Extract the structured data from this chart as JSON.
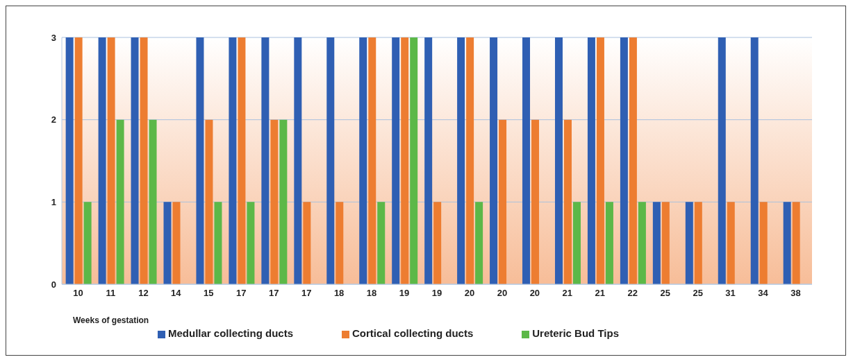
{
  "chart_data": {
    "type": "bar",
    "xlabel": "Weeks of gestation",
    "categories": [
      "10",
      "11",
      "12",
      "14",
      "15",
      "17",
      "17",
      "17",
      "18",
      "18",
      "19",
      "19",
      "20",
      "20",
      "20",
      "21",
      "21",
      "22",
      "25",
      "25",
      "31",
      "34",
      "38"
    ],
    "series": [
      {
        "name": "Medullar  collecting ducts",
        "color": "#2f5fb3",
        "values": [
          3,
          3,
          3,
          1,
          3,
          3,
          3,
          3,
          3,
          3,
          3,
          3,
          3,
          3,
          3,
          3,
          3,
          3,
          1,
          1,
          3,
          3,
          1
        ]
      },
      {
        "name": "Cortical collecting ducts",
        "color": "#ed7d31",
        "values": [
          3,
          3,
          3,
          1,
          2,
          3,
          2,
          1,
          1,
          3,
          3,
          1,
          3,
          2,
          2,
          2,
          3,
          3,
          1,
          1,
          1,
          1,
          1
        ]
      },
      {
        "name": "Ureteric Bud Tips",
        "color": "#5cb848",
        "values": [
          1,
          2,
          2,
          0,
          1,
          1,
          2,
          0,
          0,
          1,
          3,
          0,
          1,
          0,
          0,
          1,
          1,
          1,
          0,
          0,
          0,
          0,
          0
        ]
      }
    ],
    "ylim": [
      0,
      3
    ],
    "yticks": [
      0,
      1,
      2,
      3
    ],
    "grid": "y",
    "legend": "bottom"
  }
}
